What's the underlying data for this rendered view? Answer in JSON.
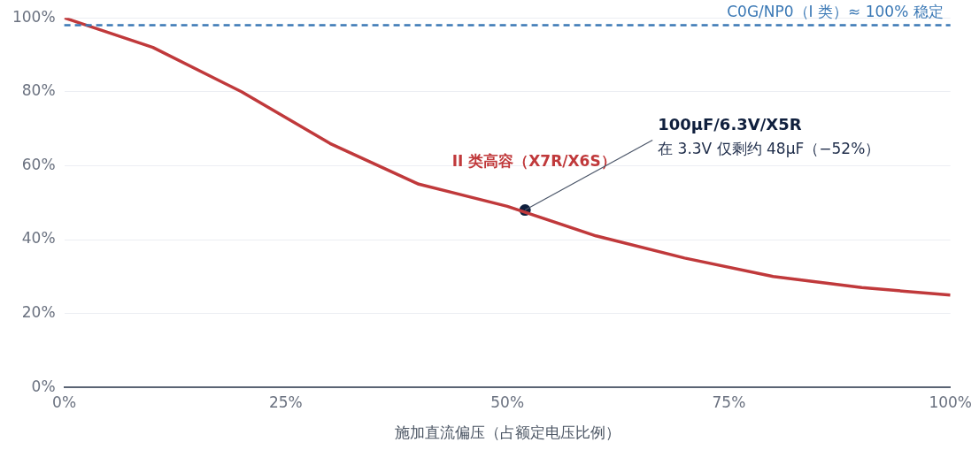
{
  "chart_data": {
    "type": "line",
    "xlabel": "施加直流偏压（占额定电压比例）",
    "xlim": [
      0,
      100
    ],
    "xticks": [
      {
        "value": 0,
        "label": "0%"
      },
      {
        "value": 25,
        "label": "25%"
      },
      {
        "value": 50,
        "label": "50%"
      },
      {
        "value": 75,
        "label": "75%"
      },
      {
        "value": 100,
        "label": "100%"
      }
    ],
    "ylim": [
      0,
      100
    ],
    "yticks": [
      {
        "value": 0,
        "label": "0%"
      },
      {
        "value": 20,
        "label": "20%"
      },
      {
        "value": 40,
        "label": "40%"
      },
      {
        "value": 60,
        "label": "60%"
      },
      {
        "value": 80,
        "label": "80%"
      },
      {
        "value": 100,
        "label": "100%"
      }
    ],
    "grid": "y",
    "legend": false,
    "marker": "none",
    "line_style": "solid",
    "series": [
      {
        "name": "II 类高容（X7R/X6S）",
        "color": "#c0393b",
        "x": [
          0,
          10,
          20,
          30,
          40,
          50,
          60,
          70,
          80,
          90,
          100
        ],
        "values": [
          100,
          92,
          80,
          66,
          55,
          49,
          41,
          35,
          30,
          27,
          25
        ]
      },
      {
        "type": "scatter",
        "color": "#0f1f3d",
        "x": [
          52
        ],
        "values": [
          48
        ],
        "marker": "circle"
      }
    ],
    "ref_lines": [
      {
        "axis": "y",
        "value": 98,
        "label": "C0G/NP0（I 类）≈ 100% 稳定",
        "color": "#3a78b5",
        "line_style": "dashed"
      }
    ],
    "annotations": [
      {
        "text": "100µF/6.3V/X5R",
        "x": 52,
        "y": 48
      },
      "在 3.3V 仅剩约 48µF（−52%）"
    ]
  }
}
